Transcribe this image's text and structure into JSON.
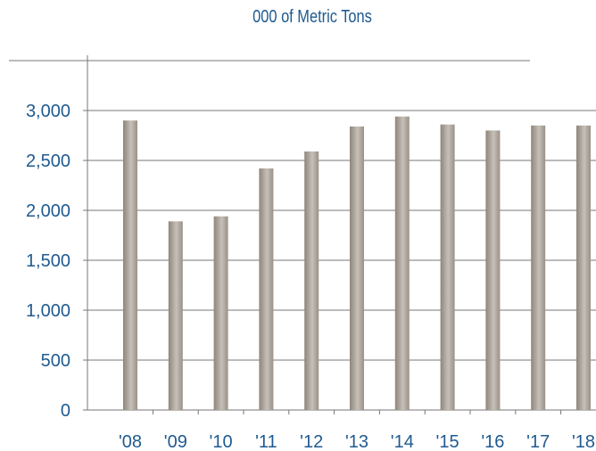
{
  "chart_data": {
    "type": "bar",
    "title": "000 of Metric Tons",
    "categories": [
      "'08",
      "'09",
      "'10",
      "'11",
      "'12",
      "'13",
      "'14",
      "'15",
      "'16",
      "'17",
      "'18"
    ],
    "values": [
      2900,
      1890,
      1940,
      2420,
      2590,
      2840,
      2940,
      2860,
      2800,
      2850,
      2850
    ],
    "ylim": [
      0,
      3000
    ],
    "yticks": [
      0,
      500,
      1000,
      1500,
      2000,
      2500,
      3000
    ],
    "ytick_labels": [
      "0",
      "500",
      "1,000",
      "1,500",
      "2,000",
      "2,500",
      "3,000"
    ],
    "grid": true,
    "legend": "none",
    "colors": {
      "bar_dark": "#8e857b",
      "bar_light": "#c6c0b8",
      "text": "#1f5a8f",
      "grid": "#777777"
    }
  }
}
